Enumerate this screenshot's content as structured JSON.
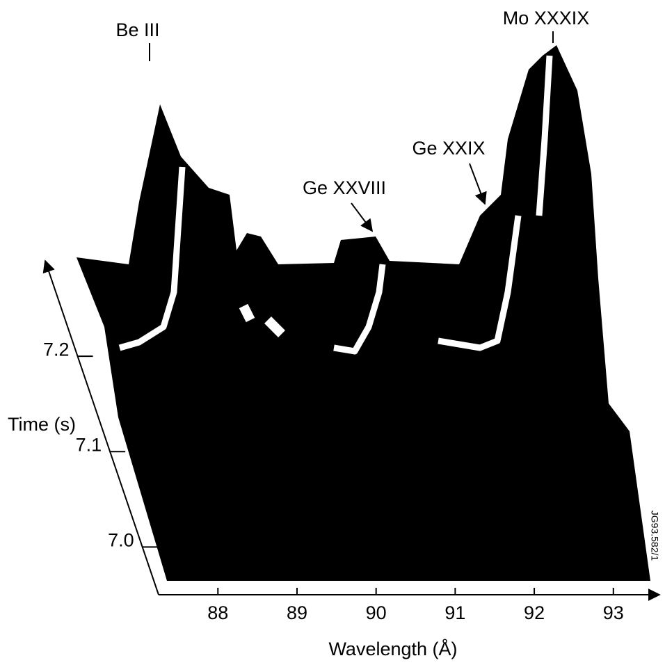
{
  "chart_data": {
    "type": "waterfall",
    "xlabel": "Wavelength (Å)",
    "ylabel": "Time (s)",
    "xlim": [
      87.25,
      93.6
    ],
    "xticks": [
      88,
      89,
      90,
      91,
      92,
      93
    ],
    "ylim": [
      6.95,
      7.3
    ],
    "yticks": [
      {
        "value": 7,
        "label": "7.0"
      },
      7.1,
      7.2
    ],
    "annotations": [
      "Be III",
      "Ge XXVIII",
      "Ge XXIX",
      "Mo XXXIX"
    ],
    "figure_id": "JG93.582/1"
  }
}
